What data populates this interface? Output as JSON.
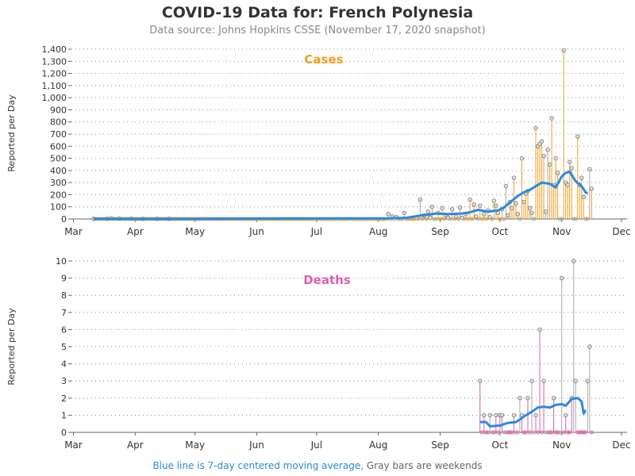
{
  "header": {
    "title": "COVID-19 Data for: French Polynesia",
    "subtitle": "Data source: Johns Hopkins CSSE (November 17, 2020 snapshot)"
  },
  "footnote": {
    "blue_part": "Blue line is 7-day centered moving average,",
    "gray_part": " Gray bars are weekends"
  },
  "colors": {
    "cases": "#f0a020",
    "deaths": "#e060a8",
    "moving_average": "#2a8ae0",
    "weekend_point": "#aaaaaa"
  },
  "chart_data": [
    {
      "type": "bar",
      "title": "Cases",
      "ylabel": "Reported per Day",
      "xlabel": "",
      "x_start": "2020-02-29",
      "x_end": "2020-12-01",
      "x_tick_labels": [
        "Mar",
        "Apr",
        "May",
        "Jun",
        "Jul",
        "Aug",
        "Sep",
        "Oct",
        "Nov",
        "Dec"
      ],
      "ylim": [
        0,
        1400
      ],
      "y_ticks": [
        "0",
        "100",
        "200",
        "300",
        "400",
        "500",
        "600",
        "700",
        "800",
        "900",
        "1,000",
        "1,100",
        "1,200",
        "1,300",
        "1,400"
      ],
      "grid": "horizontal dotted",
      "points": [
        [
          "2020-03-11",
          1
        ],
        [
          "2020-03-18",
          2
        ],
        [
          "2020-03-20",
          5
        ],
        [
          "2020-03-24",
          3
        ],
        [
          "2020-03-30",
          2
        ],
        [
          "2020-04-05",
          1
        ],
        [
          "2020-04-12",
          1
        ],
        [
          "2020-04-18",
          1
        ],
        [
          "2020-08-06",
          40
        ],
        [
          "2020-08-08",
          20
        ],
        [
          "2020-08-10",
          15
        ],
        [
          "2020-08-14",
          50
        ],
        [
          "2020-08-20",
          10
        ],
        [
          "2020-08-22",
          160
        ],
        [
          "2020-08-24",
          30
        ],
        [
          "2020-08-26",
          60
        ],
        [
          "2020-08-27",
          10
        ],
        [
          "2020-08-28",
          100
        ],
        [
          "2020-08-31",
          50
        ],
        [
          "2020-09-02",
          90
        ],
        [
          "2020-09-04",
          30
        ],
        [
          "2020-09-05",
          10
        ],
        [
          "2020-09-07",
          80
        ],
        [
          "2020-09-09",
          20
        ],
        [
          "2020-09-11",
          95
        ],
        [
          "2020-09-12",
          10
        ],
        [
          "2020-09-14",
          40
        ],
        [
          "2020-09-16",
          160
        ],
        [
          "2020-09-18",
          120
        ],
        [
          "2020-09-19",
          20
        ],
        [
          "2020-09-21",
          110
        ],
        [
          "2020-09-23",
          40
        ],
        [
          "2020-09-25",
          70
        ],
        [
          "2020-09-26",
          15
        ],
        [
          "2020-09-28",
          150
        ],
        [
          "2020-09-29",
          110
        ],
        [
          "2020-09-30",
          50
        ],
        [
          "2020-10-02",
          80
        ],
        [
          "2020-10-04",
          270
        ],
        [
          "2020-10-05",
          30
        ],
        [
          "2020-10-06",
          140
        ],
        [
          "2020-10-07",
          90
        ],
        [
          "2020-10-08",
          340
        ],
        [
          "2020-10-09",
          130
        ],
        [
          "2020-10-10",
          40
        ],
        [
          "2020-10-12",
          500
        ],
        [
          "2020-10-13",
          140
        ],
        [
          "2020-10-14",
          210
        ],
        [
          "2020-10-15",
          230
        ],
        [
          "2020-10-16",
          90
        ],
        [
          "2020-10-17",
          50
        ],
        [
          "2020-10-19",
          750
        ],
        [
          "2020-10-20",
          600
        ],
        [
          "2020-10-21",
          620
        ],
        [
          "2020-10-22",
          640
        ],
        [
          "2020-10-23",
          520
        ],
        [
          "2020-10-24",
          60
        ],
        [
          "2020-10-25",
          570
        ],
        [
          "2020-10-26",
          450
        ],
        [
          "2020-10-27",
          830
        ],
        [
          "2020-10-28",
          280
        ],
        [
          "2020-10-29",
          500
        ],
        [
          "2020-10-30",
          380
        ],
        [
          "2020-11-02",
          1390
        ],
        [
          "2020-11-03",
          300
        ],
        [
          "2020-11-04",
          280
        ],
        [
          "2020-11-05",
          470
        ],
        [
          "2020-11-06",
          420
        ],
        [
          "2020-11-09",
          680
        ],
        [
          "2020-11-10",
          280
        ],
        [
          "2020-11-11",
          340
        ],
        [
          "2020-11-12",
          180
        ],
        [
          "2020-11-15",
          410
        ],
        [
          "2020-11-16",
          250
        ]
      ],
      "moving_average": [
        [
          "2020-03-11",
          1
        ],
        [
          "2020-04-20",
          0
        ],
        [
          "2020-08-06",
          5
        ],
        [
          "2020-08-15",
          10
        ],
        [
          "2020-08-22",
          28
        ],
        [
          "2020-08-30",
          45
        ],
        [
          "2020-09-05",
          40
        ],
        [
          "2020-09-12",
          45
        ],
        [
          "2020-09-16",
          55
        ],
        [
          "2020-09-20",
          75
        ],
        [
          "2020-09-25",
          60
        ],
        [
          "2020-09-30",
          70
        ],
        [
          "2020-10-03",
          95
        ],
        [
          "2020-10-07",
          150
        ],
        [
          "2020-10-10",
          190
        ],
        [
          "2020-10-13",
          220
        ],
        [
          "2020-10-16",
          240
        ],
        [
          "2020-10-19",
          270
        ],
        [
          "2020-10-22",
          300
        ],
        [
          "2020-10-26",
          290
        ],
        [
          "2020-10-29",
          260
        ],
        [
          "2020-11-01",
          350
        ],
        [
          "2020-11-03",
          380
        ],
        [
          "2020-11-05",
          390
        ],
        [
          "2020-11-08",
          310
        ],
        [
          "2020-11-11",
          270
        ],
        [
          "2020-11-13",
          220
        ],
        [
          "2020-11-14",
          210
        ]
      ]
    },
    {
      "type": "bar",
      "title": "Deaths",
      "ylabel": "Reported per Day",
      "xlabel": "",
      "x_start": "2020-02-29",
      "x_end": "2020-12-01",
      "x_tick_labels": [
        "Mar",
        "Apr",
        "May",
        "Jun",
        "Jul",
        "Aug",
        "Sep",
        "Oct",
        "Nov",
        "Dec"
      ],
      "ylim": [
        0,
        10
      ],
      "y_ticks": [
        "0",
        "1",
        "2",
        "3",
        "4",
        "5",
        "6",
        "7",
        "8",
        "9",
        "10"
      ],
      "grid": "horizontal dotted",
      "points": [
        [
          "2020-09-21",
          3
        ],
        [
          "2020-09-23",
          1
        ],
        [
          "2020-09-26",
          1
        ],
        [
          "2020-09-29",
          1
        ],
        [
          "2020-10-01",
          1
        ],
        [
          "2020-10-02",
          1
        ],
        [
          "2020-10-08",
          1
        ],
        [
          "2020-10-11",
          2
        ],
        [
          "2020-10-12",
          1
        ],
        [
          "2020-10-15",
          2
        ],
        [
          "2020-10-17",
          3
        ],
        [
          "2020-10-19",
          1
        ],
        [
          "2020-10-21",
          6
        ],
        [
          "2020-10-23",
          3
        ],
        [
          "2020-10-28",
          2
        ],
        [
          "2020-11-01",
          9
        ],
        [
          "2020-11-03",
          1
        ],
        [
          "2020-11-06",
          2
        ],
        [
          "2020-11-07",
          10
        ],
        [
          "2020-11-08",
          3
        ],
        [
          "2020-11-14",
          3
        ],
        [
          "2020-11-15",
          5
        ]
      ],
      "moving_average": [
        [
          "2020-09-21",
          0.6
        ],
        [
          "2020-09-24",
          0.6
        ],
        [
          "2020-09-26",
          0.35
        ],
        [
          "2020-10-01",
          0.4
        ],
        [
          "2020-10-05",
          0.55
        ],
        [
          "2020-10-09",
          0.6
        ],
        [
          "2020-10-11",
          0.75
        ],
        [
          "2020-10-14",
          1.0
        ],
        [
          "2020-10-17",
          1.2
        ],
        [
          "2020-10-20",
          1.45
        ],
        [
          "2020-10-23",
          1.5
        ],
        [
          "2020-10-26",
          1.45
        ],
        [
          "2020-10-29",
          1.6
        ],
        [
          "2020-11-01",
          1.65
        ],
        [
          "2020-11-03",
          1.55
        ],
        [
          "2020-11-06",
          1.95
        ],
        [
          "2020-11-09",
          2.0
        ],
        [
          "2020-11-11",
          1.8
        ],
        [
          "2020-11-12",
          1.1
        ],
        [
          "2020-11-13",
          1.3
        ]
      ]
    }
  ]
}
